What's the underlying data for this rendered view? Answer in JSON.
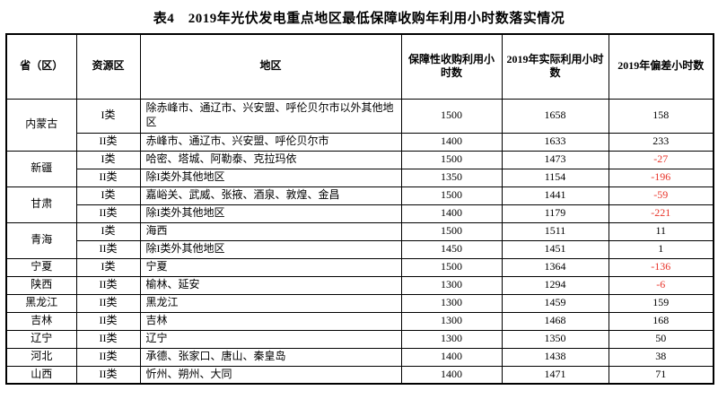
{
  "title": "表4　2019年光伏发电重点地区最低保障收购年利用小时数落实情况",
  "table": {
    "headers": [
      "省（区）",
      "资源区",
      "地区",
      "保障性收购利用小时数",
      "2019年实际利用小时数",
      "2019年偏差小时数"
    ],
    "rows": [
      {
        "province": "内蒙古",
        "province_rowspan": 2,
        "zone": "I类",
        "area": "除赤峰市、通辽市、兴安盟、呼伦贝尔市以外其他地区",
        "guaranteed_hours": "1500",
        "actual_hours": "1658",
        "deviation_hours": "158",
        "tall": true
      },
      {
        "zone": "II类",
        "area": "赤峰市、通辽市、兴安盟、呼伦贝尔市",
        "guaranteed_hours": "1400",
        "actual_hours": "1633",
        "deviation_hours": "233"
      },
      {
        "province": "新疆",
        "province_rowspan": 2,
        "zone": "I类",
        "area": "哈密、塔城、阿勒泰、克拉玛依",
        "guaranteed_hours": "1500",
        "actual_hours": "1473",
        "deviation_hours": "-27"
      },
      {
        "zone": "II类",
        "area": "除I类外其他地区",
        "guaranteed_hours": "1350",
        "actual_hours": "1154",
        "deviation_hours": "-196"
      },
      {
        "province": "甘肃",
        "province_rowspan": 2,
        "zone": "I类",
        "area": "嘉峪关、武威、张掖、酒泉、敦煌、金昌",
        "guaranteed_hours": "1500",
        "actual_hours": "1441",
        "deviation_hours": "-59"
      },
      {
        "zone": "II类",
        "area": "除I类外其他地区",
        "guaranteed_hours": "1400",
        "actual_hours": "1179",
        "deviation_hours": "-221"
      },
      {
        "province": "青海",
        "province_rowspan": 2,
        "zone": "I类",
        "area": "海西",
        "guaranteed_hours": "1500",
        "actual_hours": "1511",
        "deviation_hours": "11"
      },
      {
        "zone": "II类",
        "area": "除I类外其他地区",
        "guaranteed_hours": "1450",
        "actual_hours": "1451",
        "deviation_hours": "1"
      },
      {
        "province": "宁夏",
        "zone": "I类",
        "area": "宁夏",
        "guaranteed_hours": "1500",
        "actual_hours": "1364",
        "deviation_hours": "-136"
      },
      {
        "province": "陕西",
        "zone": "II类",
        "area": "榆林、延安",
        "guaranteed_hours": "1300",
        "actual_hours": "1294",
        "deviation_hours": "-6"
      },
      {
        "province": "黑龙江",
        "zone": "II类",
        "area": "黑龙江",
        "guaranteed_hours": "1300",
        "actual_hours": "1459",
        "deviation_hours": "159"
      },
      {
        "province": "吉林",
        "zone": "II类",
        "area": "吉林",
        "guaranteed_hours": "1300",
        "actual_hours": "1468",
        "deviation_hours": "168"
      },
      {
        "province": "辽宁",
        "zone": "II类",
        "area": "辽宁",
        "guaranteed_hours": "1300",
        "actual_hours": "1350",
        "deviation_hours": "50"
      },
      {
        "province": "河北",
        "zone": "II类",
        "area": "承德、张家口、唐山、秦皇岛",
        "guaranteed_hours": "1400",
        "actual_hours": "1438",
        "deviation_hours": "38"
      },
      {
        "province": "山西",
        "zone": "II类",
        "area": "忻州、朔州、大同",
        "guaranteed_hours": "1400",
        "actual_hours": "1471",
        "deviation_hours": "71"
      }
    ]
  },
  "colors": {
    "negative_value": "#e8352b",
    "text": "#000000",
    "border": "#000000",
    "background": "#ffffff"
  }
}
